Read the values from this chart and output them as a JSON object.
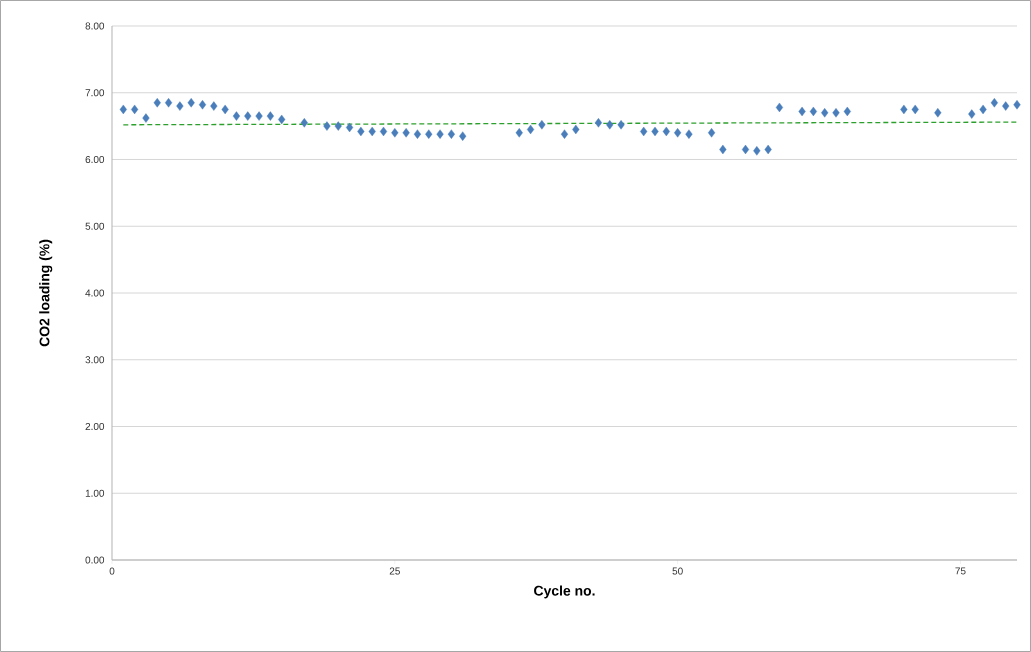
{
  "chart_data": {
    "type": "scatter",
    "xlabel": "Cycle no.",
    "ylabel": "CO2 loading (%)",
    "xlim": [
      0,
      80
    ],
    "ylim": [
      0,
      8
    ],
    "xticks": [
      0,
      25,
      50,
      75
    ],
    "yticks": [
      {
        "value": 0,
        "label": "0.00"
      },
      {
        "value": 1,
        "label": "1.00"
      },
      {
        "value": 2,
        "label": "2.00"
      },
      {
        "value": 3,
        "label": "3.00"
      },
      {
        "value": 4,
        "label": "4.00"
      },
      {
        "value": 5,
        "label": "5.00"
      },
      {
        "value": 6,
        "label": "6.00"
      },
      {
        "value": 7,
        "label": "7.00"
      },
      {
        "value": 8,
        "label": "8.00"
      }
    ],
    "grid": "y",
    "series": [
      {
        "marker": "diamond",
        "color": "#4a7ebb",
        "x": [
          1,
          2,
          3,
          4,
          5,
          6,
          7,
          8,
          9,
          10,
          11,
          12,
          13,
          14,
          15,
          17,
          19,
          20,
          21,
          22,
          23,
          24,
          25,
          26,
          27,
          28,
          29,
          30,
          31,
          36,
          37,
          38,
          40,
          41,
          43,
          44,
          45,
          47,
          48,
          49,
          50,
          51,
          53,
          54,
          56,
          57,
          58,
          59,
          61,
          62,
          63,
          64,
          65,
          70,
          71,
          73,
          76,
          77,
          78,
          79,
          80
        ],
        "values": [
          6.75,
          6.75,
          6.62,
          6.85,
          6.85,
          6.8,
          6.85,
          6.82,
          6.8,
          6.75,
          6.65,
          6.65,
          6.65,
          6.65,
          6.6,
          6.55,
          6.5,
          6.5,
          6.48,
          6.42,
          6.42,
          6.42,
          6.4,
          6.4,
          6.38,
          6.38,
          6.38,
          6.38,
          6.35,
          6.4,
          6.45,
          6.52,
          6.38,
          6.45,
          6.55,
          6.52,
          6.52,
          6.42,
          6.42,
          6.42,
          6.4,
          6.38,
          6.4,
          6.15,
          6.15,
          6.13,
          6.15,
          6.78,
          6.72,
          6.72,
          6.7,
          6.7,
          6.72,
          6.75,
          6.75,
          6.7,
          6.68,
          6.75,
          6.85,
          6.8,
          6.82
        ]
      },
      {
        "type": "line",
        "marker": "none",
        "line_style": "dashed",
        "color": "#2ca02c",
        "x": [
          1,
          80
        ],
        "values": [
          6.52,
          6.56
        ]
      }
    ]
  }
}
